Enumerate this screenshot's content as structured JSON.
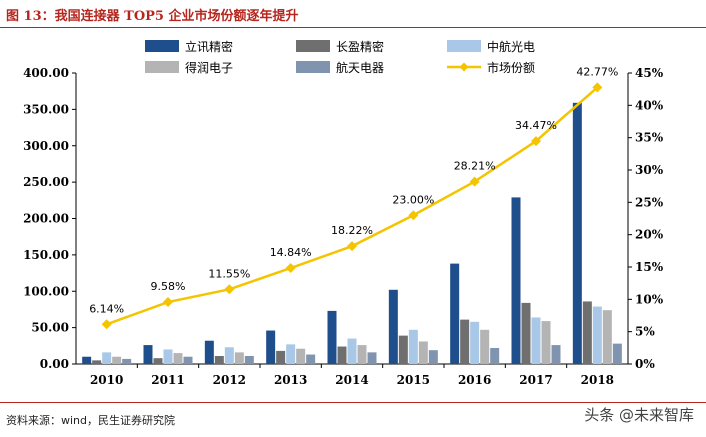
{
  "figure": {
    "title": "图 13：我国连接器 TOP5 企业市场份额逐年提升",
    "source": "资料来源：wind，民生证券研究院",
    "watermark": "头条 @未来智库"
  },
  "chart_data": {
    "type": "bar",
    "categories": [
      "2010",
      "2011",
      "2012",
      "2013",
      "2014",
      "2015",
      "2016",
      "2017",
      "2018"
    ],
    "series": [
      {
        "name": "立讯精密",
        "color": "#1f4e8c",
        "axis": "left",
        "values": [
          10,
          26,
          32,
          46,
          73,
          102,
          138,
          229,
          359
        ]
      },
      {
        "name": "长盈精密",
        "color": "#6f6f6f",
        "axis": "left",
        "values": [
          5,
          8,
          11,
          18,
          24,
          39,
          61,
          84,
          86
        ]
      },
      {
        "name": "中航光电",
        "color": "#a9c8e8",
        "axis": "left",
        "values": [
          16,
          20,
          23,
          27,
          35,
          47,
          58,
          64,
          79
        ]
      },
      {
        "name": "得润电子",
        "color": "#b4b4b4",
        "axis": "left",
        "values": [
          10,
          15,
          16,
          21,
          26,
          31,
          47,
          59,
          74
        ]
      },
      {
        "name": "航天电器",
        "color": "#8094b0",
        "axis": "left",
        "values": [
          7,
          10,
          11,
          13,
          16,
          19,
          22,
          26,
          28
        ]
      },
      {
        "name": "市场份额",
        "type": "line",
        "color": "#f5c400",
        "axis": "right",
        "unit": "%",
        "values": [
          6.14,
          9.58,
          11.55,
          14.84,
          18.22,
          23.0,
          28.21,
          34.47,
          42.77
        ],
        "labels": [
          "6.14%",
          "9.58%",
          "11.55%",
          "14.84%",
          "18.22%",
          "23.00%",
          "28.21%",
          "34.47%",
          "42.77%"
        ]
      }
    ],
    "y_left": {
      "ticks": [
        "0.00",
        "50.00",
        "100.00",
        "150.00",
        "200.00",
        "250.00",
        "300.00",
        "350.00",
        "400.00"
      ],
      "ylim": [
        0,
        400
      ]
    },
    "y_right": {
      "ticks": [
        "0%",
        "5%",
        "10%",
        "15%",
        "20%",
        "25%",
        "30%",
        "35%",
        "40%",
        "45%"
      ],
      "ylim": [
        0,
        45
      ]
    },
    "legend_position": "top",
    "grid": false
  }
}
